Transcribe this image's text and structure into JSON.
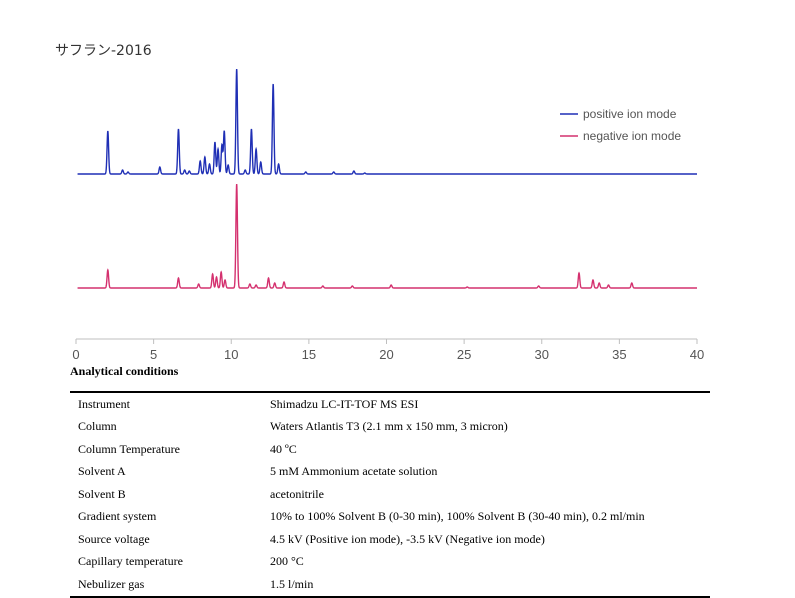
{
  "chart_title": "サフラン-2016",
  "chart_data": {
    "type": "line",
    "title": "サフラン-2016",
    "xlim": [
      0,
      40
    ],
    "x_ticks": [
      0,
      5,
      10,
      15,
      20,
      25,
      30,
      35,
      40
    ],
    "grid": false,
    "legend_position": "top-right",
    "series": [
      {
        "name": "positive ion mode",
        "color": "#1f2fb5",
        "peaks": [
          {
            "rt": 2.05,
            "h": 43
          },
          {
            "rt": 3.0,
            "h": 4
          },
          {
            "rt": 3.35,
            "h": 2
          },
          {
            "rt": 5.4,
            "h": 7
          },
          {
            "rt": 6.6,
            "h": 45
          },
          {
            "rt": 7.0,
            "h": 4
          },
          {
            "rt": 7.3,
            "h": 3
          },
          {
            "rt": 8.0,
            "h": 13
          },
          {
            "rt": 8.3,
            "h": 17
          },
          {
            "rt": 8.6,
            "h": 10
          },
          {
            "rt": 8.95,
            "h": 32
          },
          {
            "rt": 9.15,
            "h": 25
          },
          {
            "rt": 9.4,
            "h": 29
          },
          {
            "rt": 9.55,
            "h": 43
          },
          {
            "rt": 9.8,
            "h": 9
          },
          {
            "rt": 10.35,
            "h": 105
          },
          {
            "rt": 10.9,
            "h": 4
          },
          {
            "rt": 11.3,
            "h": 45
          },
          {
            "rt": 11.6,
            "h": 25
          },
          {
            "rt": 11.9,
            "h": 12
          },
          {
            "rt": 12.7,
            "h": 90
          },
          {
            "rt": 13.05,
            "h": 10
          },
          {
            "rt": 14.8,
            "h": 2
          },
          {
            "rt": 16.6,
            "h": 2
          },
          {
            "rt": 17.9,
            "h": 3
          },
          {
            "rt": 18.6,
            "h": 1
          }
        ]
      },
      {
        "name": "negative ion mode",
        "color": "#d4306e",
        "peaks": [
          {
            "rt": 2.05,
            "h": 18
          },
          {
            "rt": 6.6,
            "h": 10
          },
          {
            "rt": 7.9,
            "h": 4
          },
          {
            "rt": 8.8,
            "h": 14
          },
          {
            "rt": 9.05,
            "h": 11
          },
          {
            "rt": 9.35,
            "h": 16
          },
          {
            "rt": 9.6,
            "h": 8
          },
          {
            "rt": 10.35,
            "h": 104
          },
          {
            "rt": 11.2,
            "h": 4
          },
          {
            "rt": 11.6,
            "h": 3
          },
          {
            "rt": 12.4,
            "h": 10
          },
          {
            "rt": 12.8,
            "h": 5
          },
          {
            "rt": 13.4,
            "h": 6
          },
          {
            "rt": 15.9,
            "h": 2
          },
          {
            "rt": 17.8,
            "h": 2
          },
          {
            "rt": 20.3,
            "h": 3
          },
          {
            "rt": 25.2,
            "h": 1
          },
          {
            "rt": 29.8,
            "h": 2
          },
          {
            "rt": 32.4,
            "h": 15
          },
          {
            "rt": 33.3,
            "h": 8
          },
          {
            "rt": 33.7,
            "h": 5
          },
          {
            "rt": 34.3,
            "h": 3
          },
          {
            "rt": 35.8,
            "h": 5
          }
        ]
      }
    ]
  },
  "conditions_title": "Analytical conditions",
  "conditions": [
    {
      "label": "Instrument",
      "value": "Shimadzu LC-IT-TOF MS ESI"
    },
    {
      "label": "Column",
      "value": "Waters Atlantis T3 (2.1 mm x 150 mm, 3 micron)"
    },
    {
      "label": "Column Temperature",
      "value": "40 ºC"
    },
    {
      "label": "Solvent A",
      "value": "5 mM Ammonium acetate solution"
    },
    {
      "label": "Solvent B",
      "value": "acetonitrile"
    },
    {
      "label": "Gradient system",
      "value": "10% to 100% Solvent B (0-30 min), 100% Solvent B (30-40 min), 0.2 ml/min"
    },
    {
      "label": "Source voltage",
      "value": "4.5 kV (Positive ion mode), -3.5 kV (Negative ion mode)"
    },
    {
      "label": "Capillary temperature",
      "value": "200 °C"
    },
    {
      "label": "Nebulizer gas",
      "value": "1.5 l/min"
    }
  ]
}
